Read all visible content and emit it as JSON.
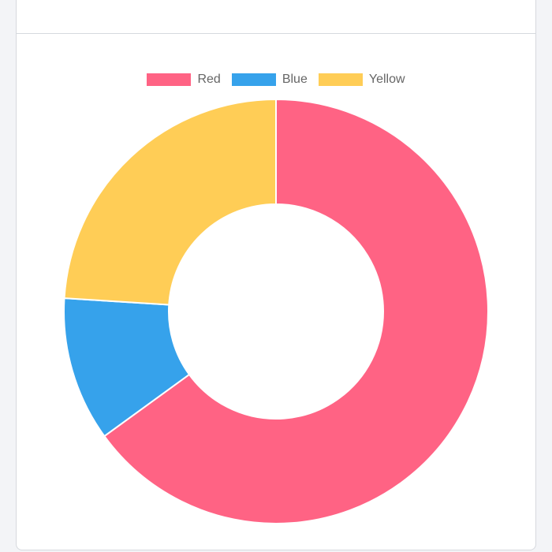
{
  "card": {
    "title": ""
  },
  "chart_data": {
    "type": "doughnut",
    "categories": [
      "Red",
      "Blue",
      "Yellow"
    ],
    "values": [
      65,
      11,
      24
    ],
    "colors": [
      "#ff6384",
      "#36a2eb",
      "#ffcd56"
    ],
    "legend": "top"
  }
}
